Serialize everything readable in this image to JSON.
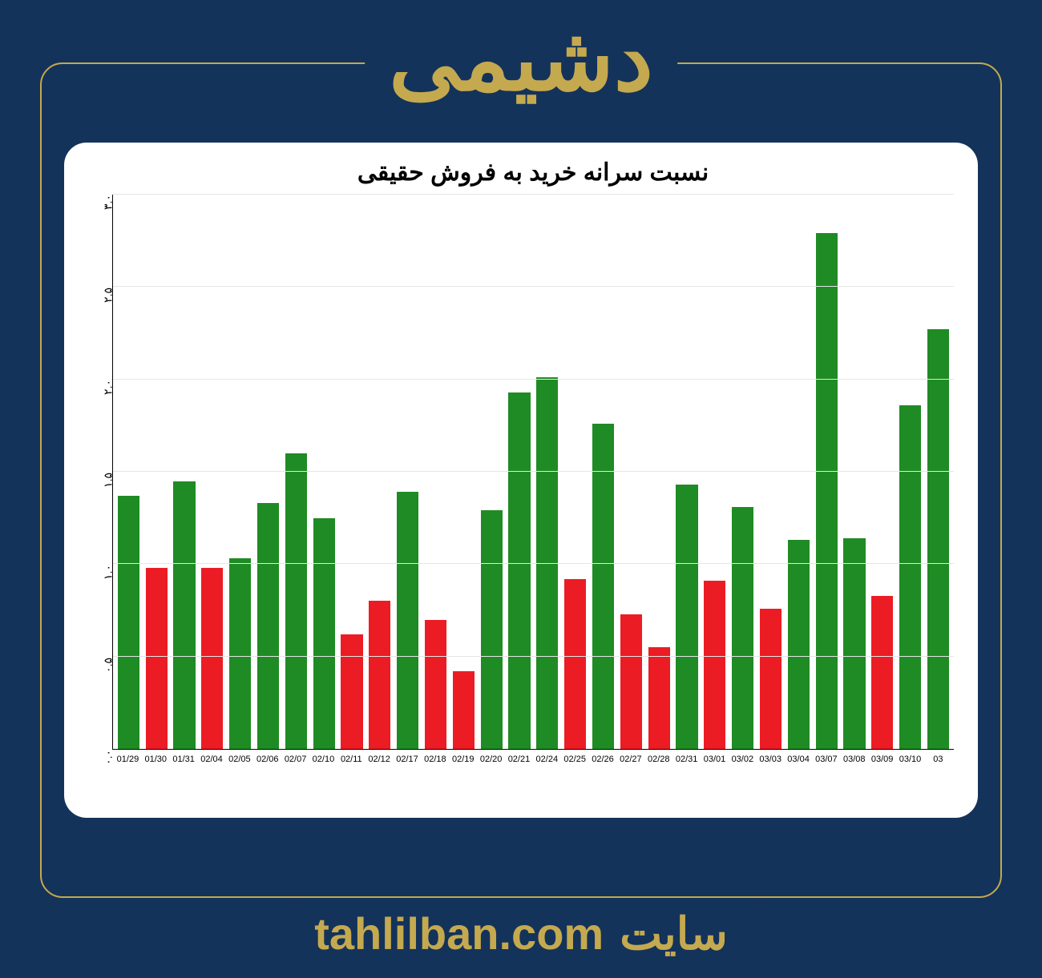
{
  "header": {
    "title": "دشیمی"
  },
  "footer": {
    "label": "سایت",
    "url": "tahlilban.com"
  },
  "chart": {
    "type": "bar",
    "title": "نسبت سرانه خرید به فروش حقیقی",
    "title_fontsize": 30,
    "title_color": "#000000",
    "background_color": "#ffffff",
    "grid_color": "#e5e5e5",
    "axis_color": "#000000",
    "ylim": [
      0,
      3.0
    ],
    "ytick_step": 0.5,
    "yticks": [
      "۰.۰",
      "۰.۵",
      "۱.۰",
      "۱.۵",
      "۲.۰",
      "۲.۵",
      "۳.۰"
    ],
    "bar_width": 0.78,
    "colors": {
      "green": "#1f8b24",
      "red": "#ec1c24"
    },
    "categories": [
      "01/29",
      "01/30",
      "01/31",
      "02/04",
      "02/05",
      "02/06",
      "02/07",
      "02/10",
      "02/11",
      "02/12",
      "02/17",
      "02/18",
      "02/19",
      "02/20",
      "02/21",
      "02/24",
      "02/25",
      "02/26",
      "02/27",
      "02/28",
      "02/31",
      "03/01",
      "03/02",
      "03/03",
      "03/04",
      "03/07",
      "03/08",
      "03/09",
      "03/10",
      "03"
    ],
    "values": [
      1.37,
      0.98,
      1.45,
      0.98,
      1.03,
      1.33,
      1.6,
      1.25,
      0.62,
      0.8,
      1.39,
      0.7,
      0.42,
      1.29,
      1.93,
      2.01,
      0.92,
      1.76,
      0.73,
      0.55,
      1.43,
      0.91,
      1.31,
      0.76,
      1.13,
      2.79,
      1.14,
      0.83,
      1.86,
      2.27
    ],
    "bar_colors": [
      "green",
      "red",
      "green",
      "red",
      "green",
      "green",
      "green",
      "green",
      "red",
      "red",
      "green",
      "red",
      "red",
      "green",
      "green",
      "green",
      "red",
      "green",
      "red",
      "red",
      "green",
      "red",
      "green",
      "red",
      "green",
      "green",
      "green",
      "red",
      "green",
      "green"
    ]
  },
  "page": {
    "background_color": "#14335a",
    "accent_color": "#c5a94f",
    "border_radius": 28
  }
}
